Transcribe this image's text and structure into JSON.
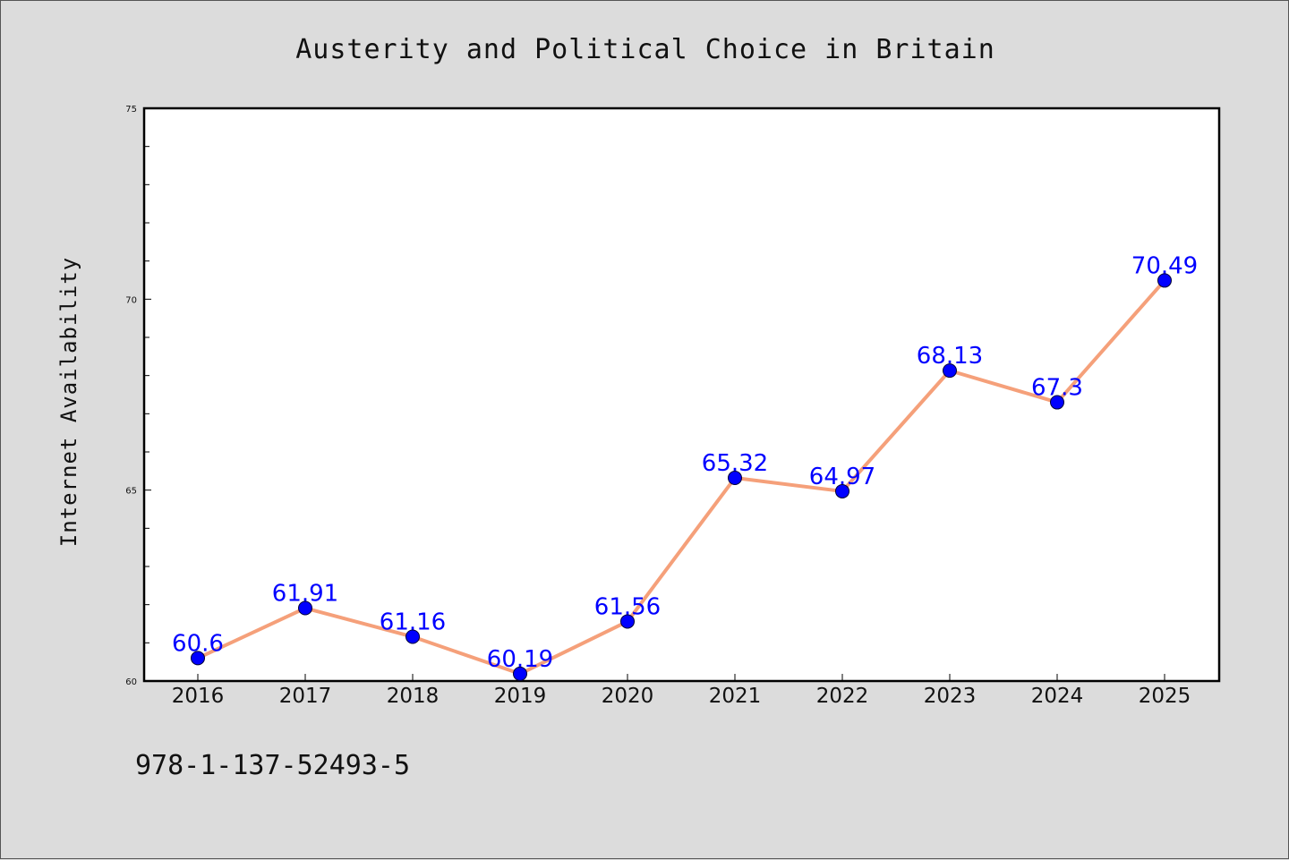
{
  "chart_data": {
    "type": "line",
    "title": "Austerity and Political Choice in Britain",
    "xlabel": "",
    "ylabel": "Internet Availability",
    "categories": [
      "2016",
      "2017",
      "2018",
      "2019",
      "2020",
      "2021",
      "2022",
      "2023",
      "2024",
      "2025"
    ],
    "series": [
      {
        "values": [
          60.6,
          61.91,
          61.16,
          60.19,
          61.56,
          65.32,
          64.97,
          68.13,
          67.3,
          70.49
        ],
        "labels": [
          "60.6",
          "61.91",
          "61.16",
          "60.19",
          "61.56",
          "65.32",
          "64.97",
          "68.13",
          "67.3",
          "70.49"
        ],
        "line_color": "#f5a07a",
        "marker_color": "#0000ff"
      }
    ],
    "ylim": [
      60,
      75
    ],
    "yticks": [
      "60",
      "65",
      "70",
      "75"
    ],
    "grid": false,
    "legend": "none"
  },
  "footer": {
    "isbn": "978-1-137-52493-5"
  },
  "colors": {
    "background": "#dcdcdc",
    "plot_background": "#ffffff",
    "data_label": "#0000ff"
  }
}
